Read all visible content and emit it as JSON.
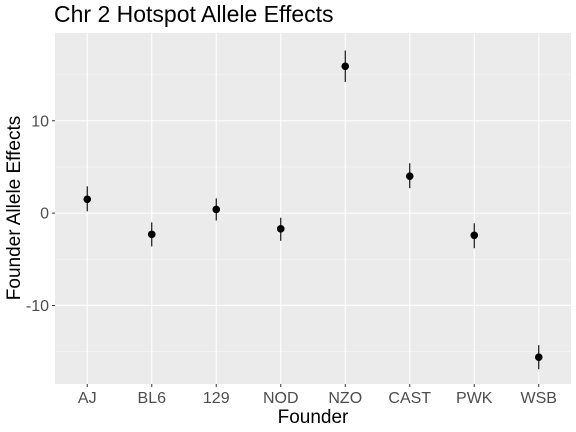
{
  "chart_data": {
    "type": "scatter",
    "title": "Chr 2 Hotspot Allele Effects",
    "xlabel": "Founder",
    "ylabel": "Founder Allele Effects",
    "categories": [
      "AJ",
      "BL6",
      "129",
      "NOD",
      "NZO",
      "CAST",
      "PWK",
      "WSB"
    ],
    "series": [
      {
        "values": [
          1.5,
          -2.3,
          0.4,
          -1.7,
          15.9,
          4.0,
          -2.4,
          -15.6
        ],
        "error_low": [
          0.2,
          -3.6,
          -0.8,
          -3.0,
          14.2,
          2.7,
          -3.8,
          -16.9
        ],
        "error_high": [
          2.9,
          -1.0,
          1.6,
          -0.5,
          17.6,
          5.4,
          -1.1,
          -14.3
        ]
      }
    ],
    "yticks": [
      -10,
      0,
      10
    ],
    "ytick_labels": [
      "-10",
      "0",
      "10"
    ],
    "ylim": [
      -18.5,
      19.5
    ],
    "grid": true,
    "colors": {
      "panel_bg": "#ebebeb",
      "grid_major": "#ffffff",
      "grid_minor": "#f5f5f5",
      "point": "#000000",
      "tick_text": "#4d4d4d",
      "tick_mark": "#333333"
    }
  }
}
